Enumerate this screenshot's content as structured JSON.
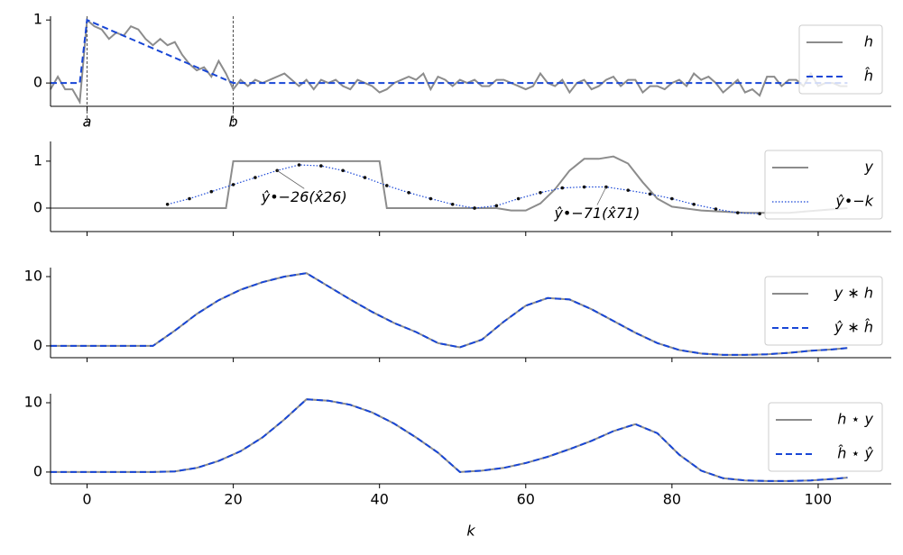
{
  "chart_data": [
    {
      "type": "line",
      "xlim": [
        -5,
        110
      ],
      "ylim": [
        -0.37,
        1.06
      ],
      "yticks": [
        0,
        1
      ],
      "xticks": [
        {
          "value": 0,
          "label": "a"
        },
        {
          "value": 20,
          "label": "b"
        }
      ],
      "vlines": [
        0,
        20
      ],
      "legend": "upper right",
      "series": [
        {
          "name": "h",
          "color": "#8c8c8c",
          "style": "solid",
          "x": [
            -5,
            -4,
            -3,
            -2,
            -1,
            0,
            1,
            2,
            3,
            4,
            5,
            6,
            7,
            8,
            9,
            10,
            11,
            12,
            13,
            14,
            15,
            16,
            17,
            18,
            19,
            20,
            21,
            22,
            23,
            24,
            25,
            26,
            27,
            28,
            29,
            30,
            31,
            32,
            33,
            34,
            35,
            36,
            37,
            38,
            39,
            40,
            41,
            42,
            43,
            44,
            45,
            46,
            47,
            48,
            49,
            50,
            51,
            52,
            53,
            54,
            55,
            56,
            57,
            58,
            59,
            60,
            61,
            62,
            63,
            64,
            65,
            66,
            67,
            68,
            69,
            70,
            71,
            72,
            73,
            74,
            75,
            76,
            77,
            78,
            79,
            80,
            81,
            82,
            83,
            84,
            85,
            86,
            87,
            88,
            89,
            90,
            91,
            92,
            93,
            94,
            95,
            96,
            97,
            98,
            99,
            100,
            101,
            102,
            103,
            104
          ],
          "values": [
            -0.1,
            0.1,
            -0.1,
            -0.1,
            -0.3,
            1.0,
            0.9,
            0.85,
            0.7,
            0.8,
            0.75,
            0.9,
            0.85,
            0.7,
            0.6,
            0.7,
            0.6,
            0.65,
            0.45,
            0.3,
            0.2,
            0.25,
            0.1,
            0.35,
            0.15,
            -0.1,
            0.05,
            -0.05,
            0.05,
            0,
            0.05,
            0.1,
            0.15,
            0.05,
            -0.05,
            0.05,
            -0.1,
            0.05,
            0,
            0.05,
            -0.05,
            -0.1,
            0.05,
            0,
            -0.05,
            -0.15,
            -0.1,
            0,
            0.05,
            0.1,
            0.05,
            0.15,
            -0.1,
            0.1,
            0.05,
            -0.05,
            0.05,
            0,
            0.05,
            -0.05,
            -0.05,
            0.05,
            0.05,
            0,
            -0.05,
            -0.1,
            -0.05,
            0.15,
            0,
            -0.05,
            0.05,
            -0.15,
            0,
            0.05,
            -0.1,
            -0.05,
            0.05,
            0.1,
            -0.05,
            0.05,
            0.05,
            -0.15,
            -0.05,
            -0.05,
            -0.1,
            0,
            0.05,
            -0.05,
            0.15,
            0.05,
            0.1,
            0,
            -0.15,
            -0.05,
            0.05,
            -0.15,
            -0.1,
            -0.2,
            0.1,
            0.1,
            -0.05,
            0.05,
            0.05,
            -0.05,
            0.15,
            -0.05,
            0,
            0,
            -0.05,
            -0.05
          ]
        },
        {
          "name": "ĥ",
          "color": "#1846d6",
          "style": "dashed",
          "x": [
            -5,
            -1,
            0,
            20,
            104
          ],
          "values": [
            0,
            0,
            1,
            0,
            0
          ]
        }
      ]
    },
    {
      "type": "line",
      "xlim": [
        -5,
        110
      ],
      "ylim": [
        -0.5,
        1.42
      ],
      "yticks": [
        0,
        1
      ],
      "xticks": [
        0,
        20,
        40,
        60,
        80,
        100
      ],
      "xtick_labels": false,
      "legend": "upper right",
      "series": [
        {
          "name": "y",
          "color": "#8c8c8c",
          "style": "solid",
          "x": [
            -5,
            19,
            20,
            40,
            41,
            56,
            58,
            60,
            62,
            64,
            66,
            68,
            70,
            72,
            74,
            76,
            78,
            80,
            84,
            90,
            96,
            104
          ],
          "values": [
            0,
            0,
            1,
            1,
            0,
            0,
            -0.05,
            -0.05,
            0.1,
            0.4,
            0.8,
            1.05,
            1.05,
            1.1,
            0.95,
            0.55,
            0.2,
            0.03,
            -0.05,
            -0.1,
            -0.1,
            0
          ]
        },
        {
          "name": "ŷ•−k",
          "color": "#1846d6",
          "style": "dotted",
          "markers": true,
          "marker_color": "#111111",
          "x": [
            11,
            14,
            17,
            20,
            23,
            26,
            29,
            32,
            35,
            38,
            41,
            44,
            47,
            50,
            53,
            56,
            59,
            62,
            65,
            68,
            71,
            74,
            77,
            80,
            83,
            86,
            89,
            92
          ],
          "values": [
            0.08,
            0.2,
            0.35,
            0.5,
            0.65,
            0.8,
            0.92,
            0.9,
            0.8,
            0.65,
            0.48,
            0.33,
            0.2,
            0.08,
            0.0,
            0.05,
            0.2,
            0.33,
            0.43,
            0.45,
            0.45,
            0.38,
            0.3,
            0.2,
            0.08,
            -0.02,
            -0.1,
            -0.12
          ]
        }
      ],
      "annotations": [
        {
          "text": "ŷ•−26(x̂26)",
          "x": 26,
          "y": 0.8
        },
        {
          "text": "ŷ•−71(x̂71)",
          "x": 71,
          "y": 0.45
        }
      ]
    },
    {
      "type": "line",
      "xlim": [
        -5,
        110
      ],
      "ylim": [
        -1.7,
        11.3
      ],
      "yticks": [
        0,
        10
      ],
      "xticks": [
        0,
        20,
        40,
        60,
        80,
        100
      ],
      "xtick_labels": false,
      "legend": "upper right",
      "series": [
        {
          "name": "y ∗ h",
          "color": "#8c8c8c",
          "style": "solid",
          "x": [
            -5,
            0,
            5,
            9,
            12,
            15,
            18,
            21,
            24,
            27,
            30,
            33,
            36,
            39,
            42,
            45,
            48,
            51,
            54,
            57,
            60,
            63,
            66,
            69,
            72,
            75,
            78,
            81,
            84,
            87,
            90,
            93,
            96,
            99,
            102,
            104
          ],
          "values": [
            0,
            0,
            0,
            0,
            2.2,
            4.6,
            6.6,
            8.1,
            9.2,
            10,
            10.5,
            8.6,
            6.7,
            4.9,
            3.3,
            2.0,
            0.4,
            -0.2,
            0.9,
            3.5,
            5.8,
            6.9,
            6.7,
            5.3,
            3.6,
            1.9,
            0.4,
            -0.6,
            -1.1,
            -1.3,
            -1.3,
            -1.2,
            -1.0,
            -0.7,
            -0.5,
            -0.3
          ]
        },
        {
          "name": "ŷ ∗ ĥ",
          "color": "#1846d6",
          "style": "dashed",
          "x": [
            -5,
            0,
            5,
            9,
            12,
            15,
            18,
            21,
            24,
            27,
            30,
            33,
            36,
            39,
            42,
            45,
            48,
            51,
            54,
            57,
            60,
            63,
            66,
            69,
            72,
            75,
            78,
            81,
            84,
            87,
            90,
            93,
            96,
            99,
            102,
            104
          ],
          "values": [
            0,
            0,
            0,
            0,
            2.2,
            4.6,
            6.6,
            8.1,
            9.2,
            10,
            10.5,
            8.6,
            6.7,
            4.9,
            3.3,
            2.0,
            0.4,
            -0.2,
            0.9,
            3.5,
            5.8,
            6.9,
            6.7,
            5.3,
            3.6,
            1.9,
            0.4,
            -0.6,
            -1.1,
            -1.3,
            -1.3,
            -1.2,
            -1.0,
            -0.7,
            -0.5,
            -0.3
          ]
        }
      ]
    },
    {
      "type": "line",
      "xlim": [
        -5,
        110
      ],
      "ylim": [
        -1.7,
        11.3
      ],
      "yticks": [
        0,
        10
      ],
      "xticks": [
        0,
        20,
        40,
        60,
        80,
        100
      ],
      "xlabel": "k",
      "legend": "upper right",
      "series": [
        {
          "name": "h ⋆ y",
          "color": "#8c8c8c",
          "style": "solid",
          "x": [
            -5,
            0,
            5,
            9,
            12,
            15,
            18,
            21,
            24,
            27,
            30,
            33,
            36,
            39,
            42,
            45,
            48,
            51,
            54,
            57,
            60,
            63,
            66,
            69,
            72,
            75,
            78,
            81,
            84,
            87,
            90,
            93,
            96,
            99,
            102,
            104
          ],
          "values": [
            0,
            0,
            0,
            0,
            0.1,
            0.6,
            1.6,
            3,
            5,
            7.6,
            10.5,
            10.3,
            9.7,
            8.6,
            7,
            5,
            2.8,
            0,
            0.2,
            0.6,
            1.3,
            2.2,
            3.3,
            4.5,
            5.9,
            6.9,
            5.6,
            2.5,
            0.2,
            -0.9,
            -1.2,
            -1.3,
            -1.3,
            -1.2,
            -1.0,
            -0.8
          ]
        },
        {
          "name": "ĥ ⋆ ŷ",
          "color": "#1846d6",
          "style": "dashed",
          "x": [
            -5,
            0,
            5,
            9,
            12,
            15,
            18,
            21,
            24,
            27,
            30,
            33,
            36,
            39,
            42,
            45,
            48,
            51,
            54,
            57,
            60,
            63,
            66,
            69,
            72,
            75,
            78,
            81,
            84,
            87,
            90,
            93,
            96,
            99,
            102,
            104
          ],
          "values": [
            0,
            0,
            0,
            0,
            0.1,
            0.6,
            1.6,
            3,
            5,
            7.6,
            10.5,
            10.3,
            9.7,
            8.6,
            7,
            5,
            2.8,
            0,
            0.2,
            0.6,
            1.3,
            2.2,
            3.3,
            4.5,
            5.9,
            6.9,
            5.6,
            2.5,
            0.2,
            -0.9,
            -1.2,
            -1.3,
            -1.3,
            -1.2,
            -1.0,
            -0.8
          ]
        }
      ]
    }
  ]
}
